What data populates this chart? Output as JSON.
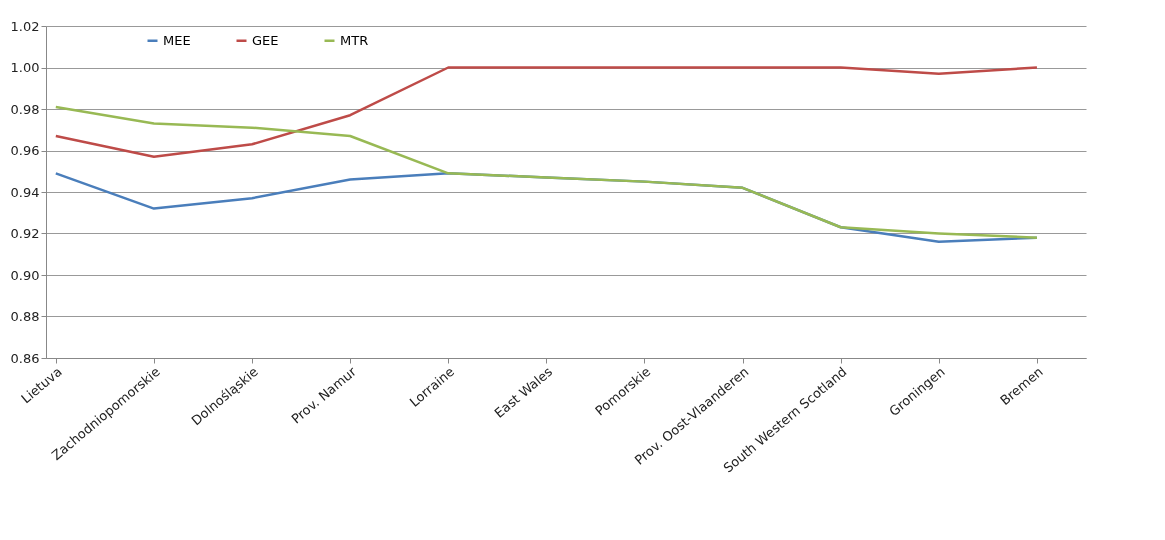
{
  "chart_data": {
    "type": "line",
    "categories": [
      "Lietuva",
      "Zachodniopomorskie",
      "Dolnośląskie",
      "Prov. Namur",
      "Lorraine",
      "East Wales",
      "Pomorskie",
      "Prov. Oost-Vlaanderen",
      "South Western Scotland",
      "Groningen",
      "Bremen"
    ],
    "series": [
      {
        "name": "MEE",
        "color": "#4a7ebb",
        "values": [
          0.949,
          0.932,
          0.937,
          0.946,
          0.949,
          0.947,
          0.945,
          0.942,
          0.923,
          0.916,
          0.918
        ]
      },
      {
        "name": "GEE",
        "color": "#be4b48",
        "values": [
          0.967,
          0.957,
          0.963,
          0.977,
          1.0,
          1.0,
          1.0,
          1.0,
          1.0,
          0.997,
          1.0
        ]
      },
      {
        "name": "MTR",
        "color": "#98b954",
        "values": [
          0.981,
          0.973,
          0.971,
          0.967,
          0.949,
          0.947,
          0.945,
          0.942,
          0.923,
          0.92,
          0.918
        ]
      }
    ],
    "ylim": [
      0.86,
      1.02
    ],
    "yticks": [
      {
        "value": 0.86,
        "label": "0.86"
      },
      {
        "value": 0.88,
        "label": "0.88"
      },
      {
        "value": 0.9,
        "label": "0.90"
      },
      {
        "value": 0.92,
        "label": "0.92"
      },
      {
        "value": 0.94,
        "label": "0.94"
      },
      {
        "value": 0.96,
        "label": "0.96"
      },
      {
        "value": 0.98,
        "label": "0.98"
      },
      {
        "value": 1.0,
        "label": "1.00"
      },
      {
        "value": 1.02,
        "label": "1.02"
      }
    ],
    "grid": "y",
    "legend": "top left",
    "marker": "none",
    "line_style": "solid"
  }
}
